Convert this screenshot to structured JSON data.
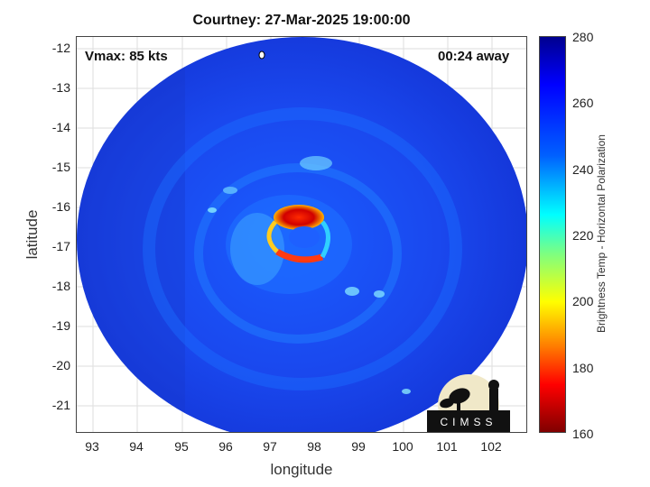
{
  "title": "Courtney: 27-Mar-2025 19:00:00",
  "vmax_label": "Vmax: 85 kts",
  "time_label": "00:24 away",
  "xlabel": "longitude",
  "ylabel": "latitude",
  "colorbar_label": "Brightness Temp - Horizontal Polarization",
  "x_ticks": [
    "93",
    "94",
    "95",
    "96",
    "97",
    "98",
    "99",
    "100",
    "101",
    "102"
  ],
  "y_ticks": [
    "-12",
    "-13",
    "-14",
    "-15",
    "-16",
    "-17",
    "-18",
    "-19",
    "-20",
    "-21"
  ],
  "colorbar_ticks": [
    "280",
    "260",
    "240",
    "220",
    "200",
    "180",
    "160"
  ],
  "logo_text": "CIMSS",
  "colors": {
    "disk_blue": "#1540e8",
    "warm_core": "#e01010",
    "colorbar_top": "#00008f",
    "colorbar_bottom": "#800000"
  }
}
